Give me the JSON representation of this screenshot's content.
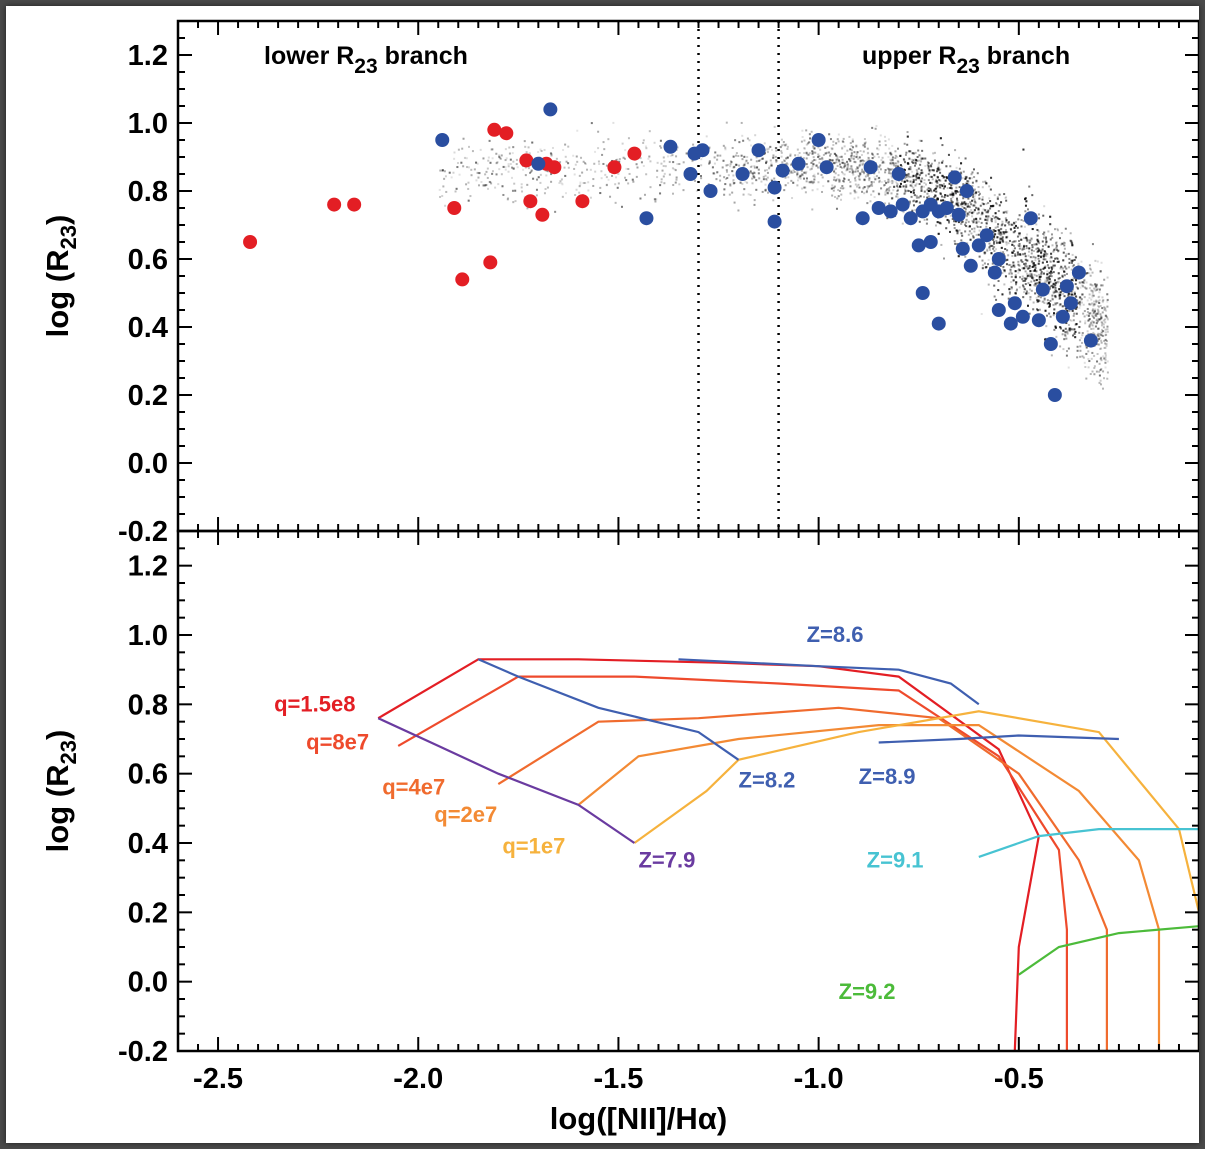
{
  "chart_data": [
    {
      "type": "scatter",
      "panel": "top",
      "xlabel": "log([NII]/Hα)",
      "ylabel": "log (R23)",
      "xlim": [
        -2.6,
        -0.05
      ],
      "ylim": [
        -0.2,
        1.3
      ],
      "xticks": [
        "-2.5",
        "-2.0",
        "-1.5",
        "-1.0",
        "-0.5"
      ],
      "yticks": [
        "1.2",
        "1.0",
        "0.8",
        "0.6",
        "0.4",
        "0.2",
        "0.0",
        "-0.2"
      ],
      "annotations": {
        "lower_branch": "lower R23 branch",
        "upper_branch": "upper R23 branch"
      },
      "vlines": [
        -1.3,
        -1.1
      ],
      "series": [
        {
          "color": "#e31e24",
          "points": [
            [
              -2.42,
              0.65
            ],
            [
              -2.21,
              0.76
            ],
            [
              -2.16,
              0.76
            ],
            [
              -1.91,
              0.75
            ],
            [
              -1.89,
              0.54
            ],
            [
              -1.82,
              0.59
            ],
            [
              -1.81,
              0.98
            ],
            [
              -1.78,
              0.97
            ],
            [
              -1.73,
              0.89
            ],
            [
              -1.72,
              0.77
            ],
            [
              -1.69,
              0.73
            ],
            [
              -1.68,
              0.88
            ],
            [
              -1.66,
              0.87
            ],
            [
              -1.59,
              0.77
            ],
            [
              -1.51,
              0.87
            ],
            [
              -1.46,
              0.91
            ]
          ]
        },
        {
          "color": "#2a4ea0",
          "points": [
            [
              -1.94,
              0.95
            ],
            [
              -1.7,
              0.88
            ],
            [
              -1.67,
              1.04
            ],
            [
              -1.43,
              0.72
            ],
            [
              -1.37,
              0.93
            ],
            [
              -1.32,
              0.85
            ],
            [
              -1.31,
              0.91
            ],
            [
              -1.29,
              0.92
            ],
            [
              -1.27,
              0.8
            ],
            [
              -1.19,
              0.85
            ],
            [
              -1.15,
              0.92
            ],
            [
              -1.11,
              0.81
            ],
            [
              -1.11,
              0.71
            ],
            [
              -1.09,
              0.86
            ],
            [
              -1.05,
              0.88
            ],
            [
              -1.0,
              0.95
            ],
            [
              -0.98,
              0.87
            ],
            [
              -0.89,
              0.72
            ],
            [
              -0.87,
              0.87
            ],
            [
              -0.85,
              0.75
            ],
            [
              -0.82,
              0.74
            ],
            [
              -0.8,
              0.85
            ],
            [
              -0.79,
              0.76
            ],
            [
              -0.77,
              0.72
            ],
            [
              -0.75,
              0.64
            ],
            [
              -0.74,
              0.74
            ],
            [
              -0.72,
              0.65
            ],
            [
              -0.72,
              0.76
            ],
            [
              -0.7,
              0.74
            ],
            [
              -0.68,
              0.75
            ],
            [
              -0.66,
              0.84
            ],
            [
              -0.65,
              0.73
            ],
            [
              -0.64,
              0.63
            ],
            [
              -0.62,
              0.58
            ],
            [
              -0.6,
              0.64
            ],
            [
              -0.58,
              0.67
            ],
            [
              -0.56,
              0.56
            ],
            [
              -0.55,
              0.45
            ],
            [
              -0.52,
              0.41
            ],
            [
              -0.51,
              0.47
            ],
            [
              -0.49,
              0.43
            ],
            [
              -0.47,
              0.72
            ],
            [
              -0.45,
              0.42
            ],
            [
              -0.44,
              0.51
            ],
            [
              -0.42,
              0.35
            ],
            [
              -0.41,
              0.2
            ],
            [
              -0.39,
              0.43
            ],
            [
              -0.38,
              0.52
            ],
            [
              -0.37,
              0.47
            ],
            [
              -0.35,
              0.56
            ],
            [
              -0.32,
              0.36
            ],
            [
              -0.74,
              0.5
            ],
            [
              -0.7,
              0.41
            ],
            [
              -0.55,
              0.6
            ],
            [
              -0.63,
              0.8
            ]
          ]
        }
      ],
      "background_cloud": {
        "color": "#000000",
        "description_on_chart": ""
      }
    },
    {
      "type": "line",
      "panel": "bottom",
      "xlabel": "log([NII]/Hα)",
      "ylabel": "log (R23)",
      "xlim": [
        -2.6,
        -0.05
      ],
      "ylim": [
        -0.2,
        1.3
      ],
      "xticks": [
        "-2.5",
        "-2.0",
        "-1.5",
        "-1.0",
        "-0.5"
      ],
      "yticks": [
        "1.2",
        "1.0",
        "0.8",
        "0.6",
        "0.4",
        "0.2",
        "0.0",
        "-0.2"
      ],
      "q_lines": [
        {
          "label": "q=1.5e8",
          "color": "#e31e24",
          "points": [
            [
              -2.1,
              0.76
            ],
            [
              -1.85,
              0.93
            ],
            [
              -1.6,
              0.93
            ],
            [
              -1.25,
              0.92
            ],
            [
              -1.0,
              0.91
            ],
            [
              -0.8,
              0.88
            ],
            [
              -0.55,
              0.67
            ],
            [
              -0.45,
              0.42
            ],
            [
              -0.5,
              0.1
            ],
            [
              -0.51,
              -0.2
            ]
          ]
        },
        {
          "label": "q=8e7",
          "color": "#ee4a2c",
          "points": [
            [
              -2.05,
              0.68
            ],
            [
              -1.75,
              0.88
            ],
            [
              -1.46,
              0.88
            ],
            [
              -1.1,
              0.86
            ],
            [
              -0.8,
              0.84
            ],
            [
              -0.55,
              0.65
            ],
            [
              -0.4,
              0.38
            ],
            [
              -0.38,
              0.15
            ],
            [
              -0.38,
              -0.2
            ]
          ]
        },
        {
          "label": "q=4e7",
          "color": "#f06b2e",
          "points": [
            [
              -1.8,
              0.57
            ],
            [
              -1.55,
              0.75
            ],
            [
              -1.3,
              0.76
            ],
            [
              -0.95,
              0.79
            ],
            [
              -0.7,
              0.76
            ],
            [
              -0.5,
              0.6
            ],
            [
              -0.35,
              0.35
            ],
            [
              -0.28,
              0.15
            ],
            [
              -0.28,
              -0.2
            ]
          ]
        },
        {
          "label": "q=2e7",
          "color": "#f38a34",
          "points": [
            [
              -1.6,
              0.51
            ],
            [
              -1.45,
              0.65
            ],
            [
              -1.2,
              0.7
            ],
            [
              -0.85,
              0.74
            ],
            [
              -0.6,
              0.74
            ],
            [
              -0.35,
              0.55
            ],
            [
              -0.2,
              0.35
            ],
            [
              -0.15,
              0.15
            ],
            [
              -0.15,
              -0.2
            ]
          ]
        },
        {
          "label": "q=1e7",
          "color": "#f6b23d",
          "points": [
            [
              -1.46,
              0.4
            ],
            [
              -1.28,
              0.55
            ],
            [
              -1.2,
              0.64
            ],
            [
              -0.9,
              0.72
            ],
            [
              -0.6,
              0.78
            ],
            [
              -0.3,
              0.72
            ],
            [
              -0.1,
              0.44
            ],
            [
              -0.05,
              0.2
            ],
            [
              -0.05,
              -0.2
            ]
          ]
        }
      ],
      "z_lines": [
        {
          "label": "Z=7.9",
          "color": "#6a3ba0",
          "points": [
            [
              -2.1,
              0.76
            ],
            [
              -1.95,
              0.68
            ],
            [
              -1.8,
              0.6
            ],
            [
              -1.6,
              0.51
            ],
            [
              -1.46,
              0.4
            ]
          ]
        },
        {
          "label": "Z=8.2",
          "color": "#3f5fb0",
          "points": [
            [
              -1.85,
              0.93
            ],
            [
              -1.75,
              0.88
            ],
            [
              -1.55,
              0.79
            ],
            [
              -1.3,
              0.72
            ],
            [
              -1.2,
              0.64
            ]
          ]
        },
        {
          "label": "Z=8.6",
          "color": "#3f5fb0",
          "points": [
            [
              -1.35,
              0.93
            ],
            [
              -1.0,
              0.91
            ],
            [
              -0.8,
              0.9
            ],
            [
              -0.67,
              0.86
            ],
            [
              -0.6,
              0.8
            ]
          ]
        },
        {
          "label": "Z=8.9",
          "color": "#3f5fb0",
          "points": [
            [
              -0.85,
              0.69
            ],
            [
              -0.65,
              0.7
            ],
            [
              -0.5,
              0.71
            ],
            [
              -0.25,
              0.7
            ]
          ]
        },
        {
          "label": "Z=9.1",
          "color": "#47c3d2",
          "points": [
            [
              -0.6,
              0.36
            ],
            [
              -0.45,
              0.42
            ],
            [
              -0.3,
              0.44
            ],
            [
              -0.05,
              0.44
            ]
          ]
        },
        {
          "label": "Z=9.2",
          "color": "#4cbb3a",
          "points": [
            [
              -0.5,
              0.02
            ],
            [
              -0.4,
              0.1
            ],
            [
              -0.25,
              0.14
            ],
            [
              -0.05,
              0.16
            ]
          ]
        }
      ]
    }
  ]
}
